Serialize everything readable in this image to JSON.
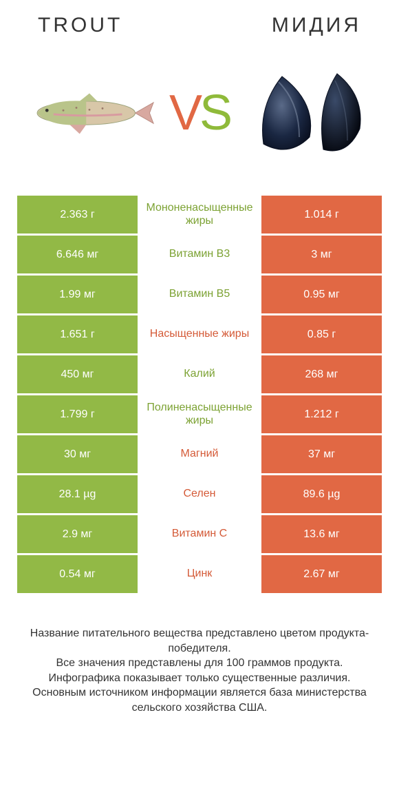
{
  "colors": {
    "left": "#92b946",
    "right": "#e16844",
    "label_left": "#7ca233",
    "label_right": "#d45a37"
  },
  "header": {
    "left_title": "TROUT",
    "right_title": "МИДИЯ"
  },
  "vs": {
    "v": "V",
    "s": "S"
  },
  "rows": [
    {
      "left": "2.363 г",
      "label": "Мононенасыщенные жиры",
      "right": "1.014 г",
      "winner": "left"
    },
    {
      "left": "6.646 мг",
      "label": "Витамин B3",
      "right": "3 мг",
      "winner": "left"
    },
    {
      "left": "1.99 мг",
      "label": "Витамин B5",
      "right": "0.95 мг",
      "winner": "left"
    },
    {
      "left": "1.651 г",
      "label": "Насыщенные жиры",
      "right": "0.85 г",
      "winner": "right"
    },
    {
      "left": "450 мг",
      "label": "Калий",
      "right": "268 мг",
      "winner": "left"
    },
    {
      "left": "1.799 г",
      "label": "Полиненасыщенные жиры",
      "right": "1.212 г",
      "winner": "left"
    },
    {
      "left": "30 мг",
      "label": "Магний",
      "right": "37 мг",
      "winner": "right"
    },
    {
      "left": "28.1 µg",
      "label": "Селен",
      "right": "89.6 µg",
      "winner": "right"
    },
    {
      "left": "2.9 мг",
      "label": "Витамин C",
      "right": "13.6 мг",
      "winner": "right"
    },
    {
      "left": "0.54 мг",
      "label": "Цинк",
      "right": "2.67 мг",
      "winner": "right"
    }
  ],
  "footer": {
    "line1": "Название питательного вещества представлено цветом продукта-победителя.",
    "line2": "Все значения представлены для 100 граммов продукта.",
    "line3": "Инфографика показывает только существенные различия.",
    "line4": "Основным источником информации является база министерства сельского хозяйства США."
  }
}
